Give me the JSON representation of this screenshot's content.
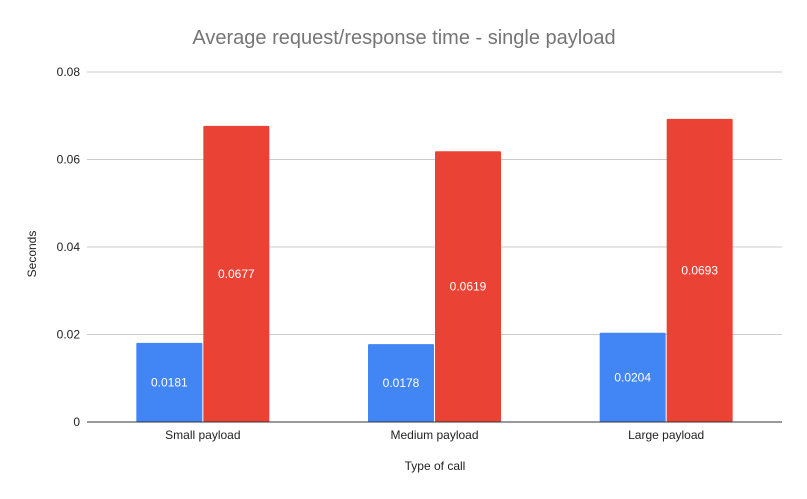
{
  "chart_data": {
    "type": "bar",
    "title": "Average request/response time - single payload",
    "xlabel": "Type of call",
    "ylabel": "Seconds",
    "categories": [
      "Small payload",
      "Medium payload",
      "Large payload"
    ],
    "series": [
      {
        "values": [
          0.0181,
          0.0178,
          0.0204
        ],
        "color": "#4285f4"
      },
      {
        "values": [
          0.0677,
          0.0619,
          0.0693
        ],
        "color": "#ea4335"
      }
    ],
    "ylim": [
      0,
      0.08
    ],
    "yticks": [
      "0",
      "0.02",
      "0.04",
      "0.06",
      "0.08"
    ],
    "ytick_values": [
      0,
      0.02,
      0.04,
      0.06,
      0.08
    ],
    "data_labels": [
      [
        "0.0181",
        "0.0178",
        "0.0204"
      ],
      [
        "0.0677",
        "0.0619",
        "0.0693"
      ]
    ],
    "grid": true,
    "legend": "none"
  }
}
